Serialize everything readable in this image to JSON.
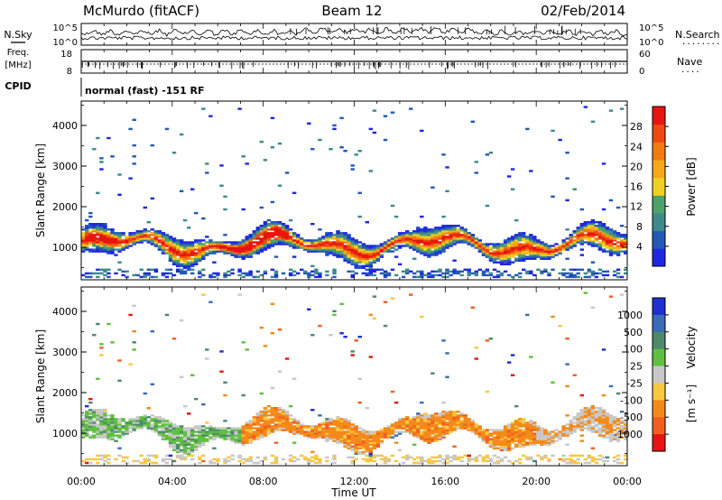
{
  "header": {
    "station": "McMurdo (fitACF)",
    "beam": "Beam 12",
    "date": "02/Feb/2014"
  },
  "noise_panel": {
    "left_label": "N.Sky",
    "right_label": "N.Search",
    "right_dots": "........",
    "left_ticks": [
      "10^5",
      "10^0"
    ],
    "right_ticks": [
      "10^5",
      "10^0"
    ]
  },
  "freq_panel": {
    "left_label_1": "Freq.",
    "left_label_2": "[MHz]",
    "right_label": "Nave",
    "right_dots": "....",
    "left_ticks": [
      "18",
      "8"
    ],
    "right_ticks": [
      "60",
      "0"
    ]
  },
  "cpid": {
    "label": "CPID",
    "text": "normal (fast) -151 RF"
  },
  "colors": {
    "power_scale": [
      "#1f28e0",
      "#2559b8",
      "#3f8a8a",
      "#4ea26a",
      "#f0d020",
      "#f5a818",
      "#f37a12",
      "#ee4a10",
      "#e81410"
    ],
    "velocity_scale": [
      "#1f30d0",
      "#3a6cb8",
      "#4e8a6a",
      "#60c040",
      "#c8c8c8",
      "#f8c840",
      "#f38a1a",
      "#f06020",
      "#e81414"
    ]
  },
  "chart_data": [
    {
      "type": "heatmap",
      "title": "",
      "ylabel": "Slant Range [km]",
      "ylim": [
        200,
        4600
      ],
      "yticks": [
        "4000",
        "3000",
        "2000",
        "1000"
      ],
      "colorbar_label": "Power [dB]",
      "colorbar_ticks": [
        "28",
        "24",
        "20",
        "16",
        "12",
        "8",
        "4"
      ],
      "colorbar_range": [
        0,
        32
      ],
      "legend": "right"
    },
    {
      "type": "heatmap",
      "title": "",
      "ylabel": "Slant Range [km]",
      "xlabel": "Time UT",
      "ylim": [
        200,
        4600
      ],
      "yticks": [
        "4000",
        "3000",
        "2000",
        "1000"
      ],
      "xticks": [
        "00:00",
        "04:00",
        "08:00",
        "12:00",
        "16:00",
        "20:00",
        "00:00"
      ],
      "xlim_hours": [
        0,
        24
      ],
      "colorbar_label": "Velocity",
      "colorbar_units": "[m s⁻¹]",
      "colorbar_ticks": [
        "1000",
        "500",
        "100",
        "25",
        "-25",
        "-100",
        "-500",
        "-1000"
      ],
      "legend": "right"
    }
  ]
}
